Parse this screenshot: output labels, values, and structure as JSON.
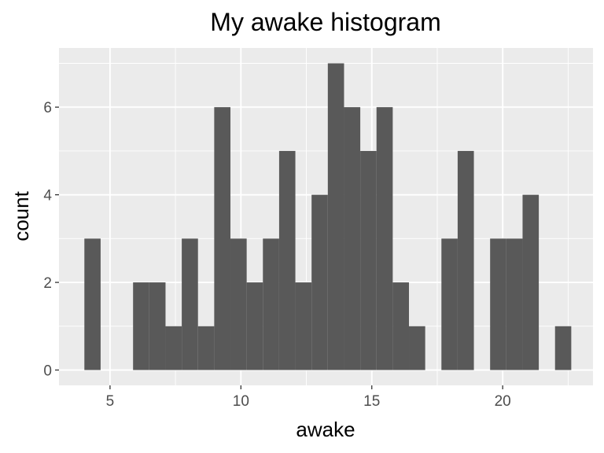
{
  "chart_data": {
    "type": "bar",
    "title": "My awake histogram",
    "xlabel": "awake",
    "ylabel": "count",
    "xlim": [
      3.05,
      23.45
    ],
    "ylim": [
      -0.35,
      7.35
    ],
    "x_ticks": [
      5,
      10,
      15,
      20
    ],
    "y_ticks": [
      0,
      2,
      4,
      6
    ],
    "grid": true,
    "bin_width": 0.62,
    "bins": [
      {
        "x": 4.33,
        "count": 3
      },
      {
        "x": 4.95,
        "count": 0
      },
      {
        "x": 5.57,
        "count": 0
      },
      {
        "x": 6.19,
        "count": 2
      },
      {
        "x": 6.81,
        "count": 2
      },
      {
        "x": 7.43,
        "count": 1
      },
      {
        "x": 8.05,
        "count": 3
      },
      {
        "x": 8.67,
        "count": 1
      },
      {
        "x": 9.29,
        "count": 6
      },
      {
        "x": 9.91,
        "count": 3
      },
      {
        "x": 10.53,
        "count": 2
      },
      {
        "x": 11.15,
        "count": 3
      },
      {
        "x": 11.77,
        "count": 5
      },
      {
        "x": 12.39,
        "count": 2
      },
      {
        "x": 13.01,
        "count": 4
      },
      {
        "x": 13.63,
        "count": 7
      },
      {
        "x": 14.25,
        "count": 6
      },
      {
        "x": 14.87,
        "count": 5
      },
      {
        "x": 15.49,
        "count": 6
      },
      {
        "x": 16.11,
        "count": 2
      },
      {
        "x": 16.73,
        "count": 1
      },
      {
        "x": 17.35,
        "count": 0
      },
      {
        "x": 17.97,
        "count": 3
      },
      {
        "x": 18.59,
        "count": 5
      },
      {
        "x": 19.21,
        "count": 0
      },
      {
        "x": 19.83,
        "count": 3
      },
      {
        "x": 20.45,
        "count": 3
      },
      {
        "x": 21.07,
        "count": 4
      },
      {
        "x": 21.69,
        "count": 0
      },
      {
        "x": 22.31,
        "count": 1
      }
    ],
    "colors": {
      "bar": "#595959",
      "panel": "#ebebeb",
      "grid_major": "#ffffff",
      "tick": "#333333"
    }
  }
}
